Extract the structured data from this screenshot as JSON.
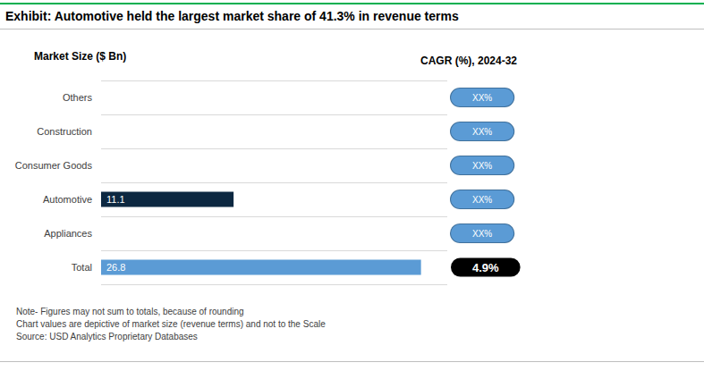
{
  "chart_data": {
    "type": "bar",
    "orientation": "horizontal",
    "title": "Exhibit: Automotive held the largest market share of 41.3% in revenue terms",
    "subtitle": "Market Size ($ Bn)",
    "categories": [
      "Others",
      "Construction",
      "Consumer Goods",
      "Automotive",
      "Appliances",
      "Total"
    ],
    "values": [
      null,
      null,
      null,
      11.1,
      null,
      26.8
    ],
    "colors": [
      null,
      null,
      null,
      "#0d2841",
      null,
      "#5b9bd5"
    ],
    "data_labels": true,
    "xlim": [
      0,
      29
    ],
    "xticks": [
      0,
      29
    ],
    "tick_labels": "y",
    "grid": true,
    "cagr": {
      "title": "CAGR (%), 2024-32",
      "labels": [
        "XX%",
        "XX%",
        "XX%",
        "XX%",
        "XX%",
        "4.9%"
      ]
    },
    "notes": [
      "Note- Figures may not sum to totals, because of rounding",
      "Chart values are depictive of market size (revenue terms) and not to the Scale",
      "Source: USD Analytics Proprietary Databases"
    ]
  }
}
